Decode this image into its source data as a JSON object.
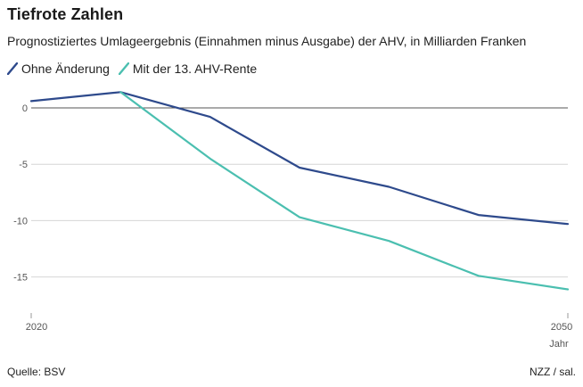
{
  "title": "Tiefrote Zahlen",
  "subtitle": "Prognostiziertes Umlageergebnis (Einnahmen minus Ausgabe) der AHV, in Milliarden Franken",
  "source": "Quelle: BSV",
  "credit": "NZZ / sal.",
  "colors": {
    "series1": "#2e4a8c",
    "series2": "#4bbfb0",
    "grid": "#d6d6d6",
    "zero": "#555555"
  },
  "chart_data": {
    "type": "line",
    "x": [
      2020,
      2025,
      2030,
      2035,
      2040,
      2045,
      2050
    ],
    "xticks": [
      "2020",
      "2050"
    ],
    "xlabel": "Jahr",
    "ylabel": "",
    "ylim": [
      -18,
      2
    ],
    "yticks": [
      0,
      -5,
      -10,
      -15
    ],
    "ytick_labels": [
      "0",
      "-5",
      "-10",
      "-15"
    ],
    "series": [
      {
        "name": "Ohne Änderung",
        "x": [
          2020,
          2025,
          2030,
          2035,
          2040,
          2045,
          2050
        ],
        "values": [
          0.6,
          1.4,
          -0.8,
          -5.3,
          -7.0,
          -9.5,
          -10.3
        ]
      },
      {
        "name": "Mit der 13. AHV-Rente",
        "x": [
          2025,
          2030,
          2035,
          2040,
          2045,
          2050
        ],
        "values": [
          1.4,
          -4.5,
          -9.7,
          -11.8,
          -14.9,
          -16.1
        ]
      }
    ]
  }
}
